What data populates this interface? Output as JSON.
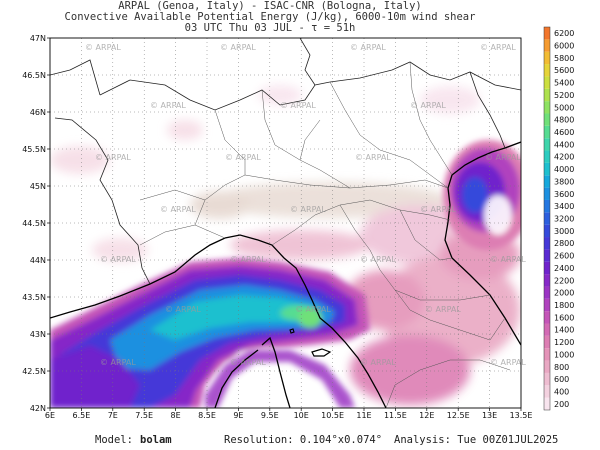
{
  "header": {
    "line1": "ARPAL (Genoa, Italy)  -  ISAC-CNR (Bologna, Italy)",
    "line2": "Convective Available Potential Energy (J/kg), 6000-10m wind shear",
    "line3": "03 UTC Thu 03 JUL   -   τ = 51h"
  },
  "axes": {
    "lon_labels": [
      "6E",
      "6.5E",
      "7E",
      "7.5E",
      "8E",
      "8.5E",
      "9E",
      "9.5E",
      "10E",
      "10.5E",
      "11E",
      "11.5E",
      "12E",
      "12.5E",
      "13E",
      "13.5E"
    ],
    "lat_labels": [
      "42N",
      "42.5N",
      "43N",
      "43.5N",
      "44N",
      "44.5N",
      "45N",
      "45.5N",
      "46N",
      "46.5N",
      "47N"
    ]
  },
  "colorbar": {
    "levels": [
      "200",
      "400",
      "600",
      "800",
      "1000",
      "1200",
      "1400",
      "1600",
      "1800",
      "2000",
      "2200",
      "2400",
      "2600",
      "2800",
      "3000",
      "3200",
      "3400",
      "3600",
      "3800",
      "4000",
      "4200",
      "4400",
      "4600",
      "4800",
      "5000",
      "5200",
      "5400",
      "5600",
      "5800",
      "6000",
      "6200"
    ],
    "colors": [
      "#f8e4ee",
      "#f3d1df",
      "#eebdd1",
      "#e9a8c3",
      "#e493b8",
      "#dd7eb3",
      "#d36ab4",
      "#c455b8",
      "#b043be",
      "#9b34c4",
      "#8628c8",
      "#6f22cc",
      "#5a2ad2",
      "#4538d8",
      "#344adb",
      "#2c5fde",
      "#2477e0",
      "#1c90e0",
      "#16a8dc",
      "#1ec0cf",
      "#2cccc0",
      "#3fd5ab",
      "#56dc92",
      "#70e079",
      "#8ee262",
      "#aee24e",
      "#ccdf40",
      "#e6d439",
      "#f2bc34",
      "#f59b30",
      "#f2762c"
    ]
  },
  "watermark": "ARPAL",
  "footer": {
    "model_label": "Model:",
    "model_value": "bolam",
    "resolution": "Resolution: 0.104°x0.074°",
    "analysis": "Analysis: Tue 00Z01JUL2025"
  }
}
